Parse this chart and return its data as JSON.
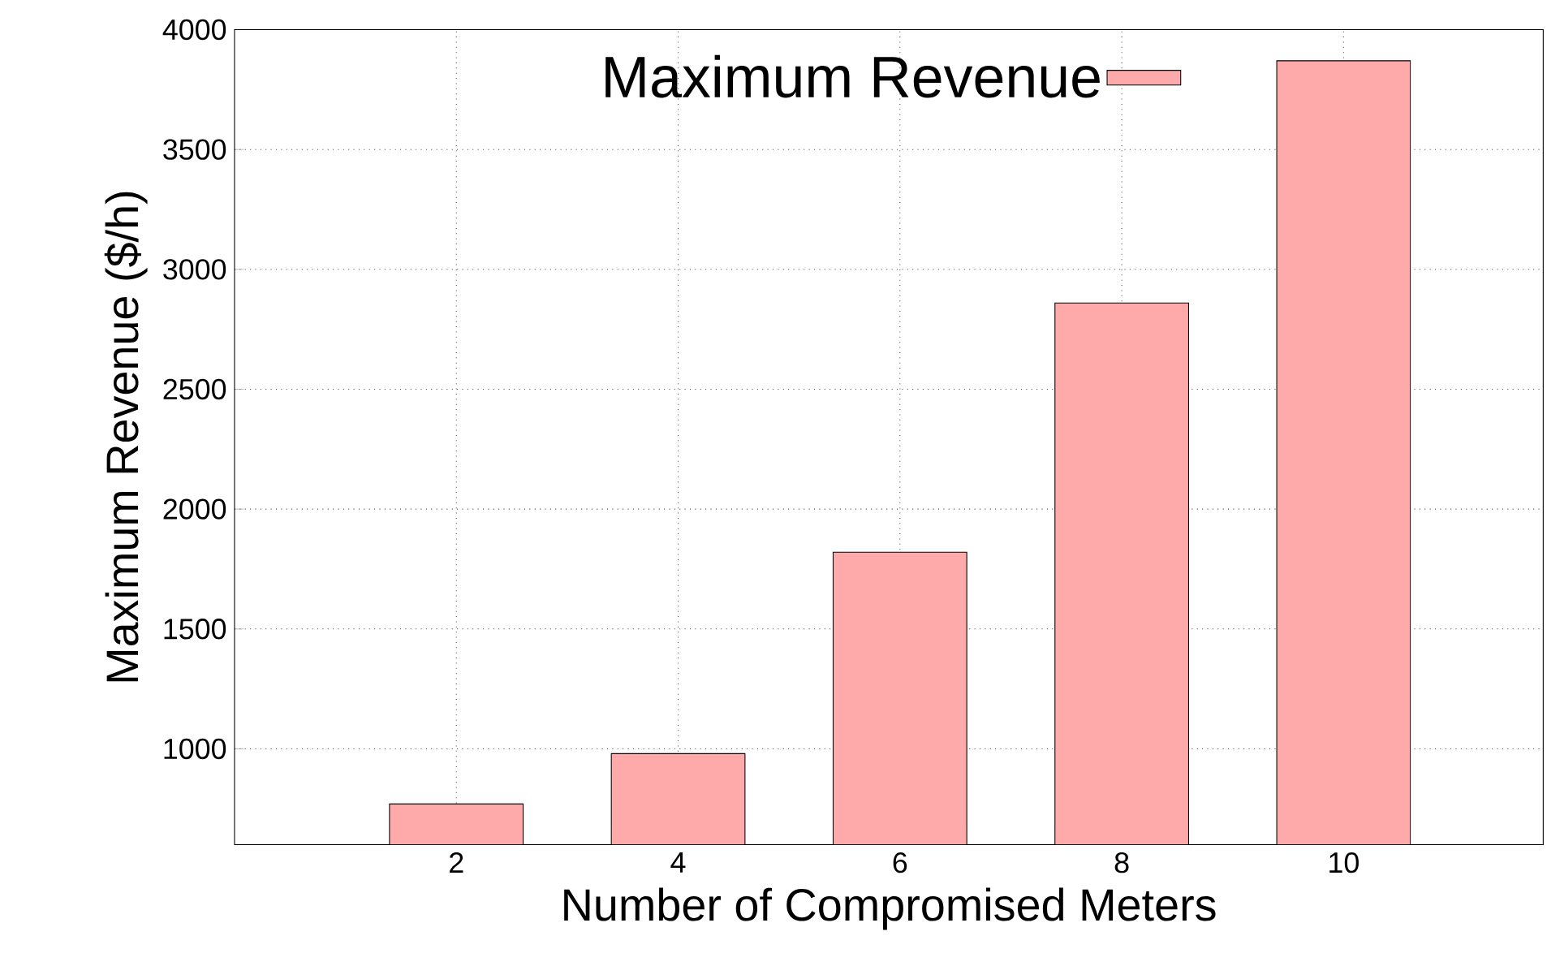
{
  "chart_data": {
    "type": "bar",
    "xlabel": "Number of Compromised Meters",
    "ylabel": "Maximum Revenue ($/h)",
    "categories": [
      "2",
      "4",
      "6",
      "8",
      "10"
    ],
    "series": [
      {
        "name": "Maximum Revenue",
        "color": "#ffaaaa",
        "values": [
          770,
          980,
          1820,
          2860,
          3870
        ]
      }
    ],
    "ylim": [
      600,
      4000
    ],
    "yticks": [
      1000,
      1500,
      2000,
      2500,
      3000,
      3500,
      4000
    ],
    "grid": true,
    "legend": "top"
  }
}
